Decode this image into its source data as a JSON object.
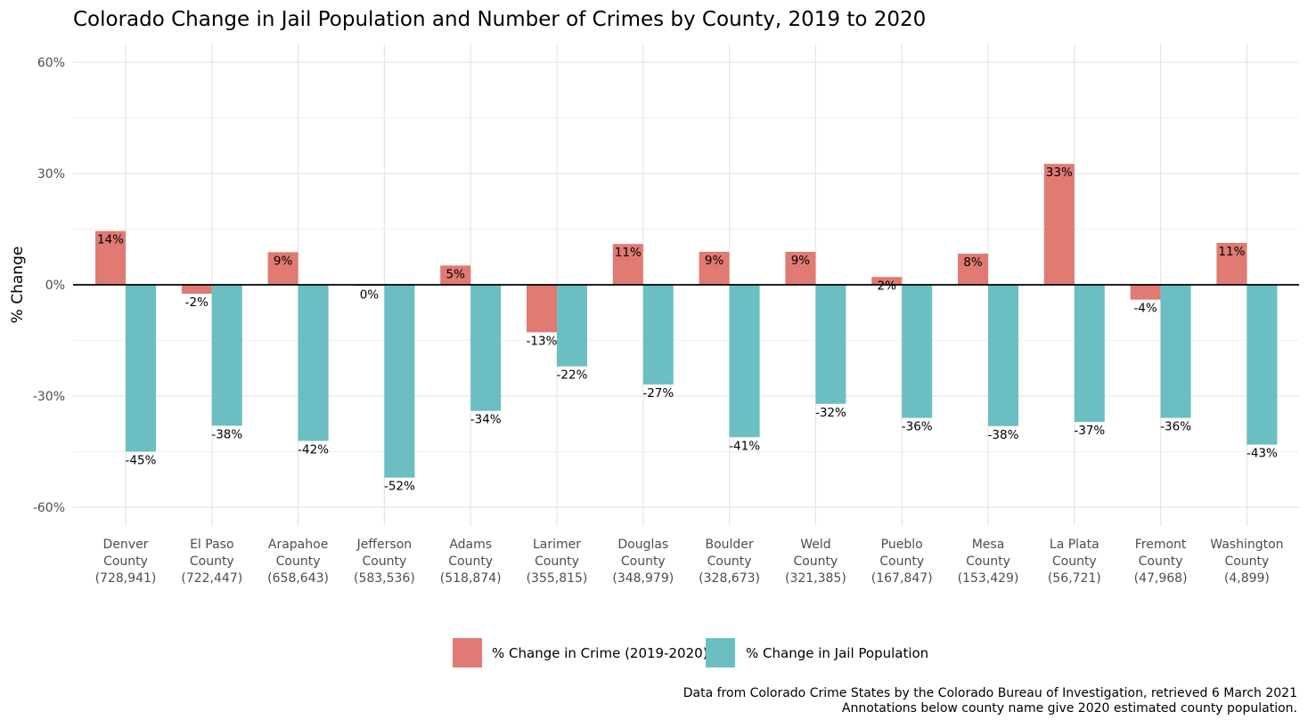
{
  "chart_data": {
    "type": "bar",
    "title": "Colorado Change in Jail Population and Number of Crimes by County, 2019 to 2020",
    "ylabel": "% Change",
    "xlabel": "",
    "ylim": [
      -65,
      65
    ],
    "yticks": [
      60,
      30,
      0,
      -30,
      -60
    ],
    "ytick_labels": [
      "60%",
      "30%",
      "0%",
      "-30%",
      "-60%"
    ],
    "grid": true,
    "legend_position": "bottom",
    "categories": [
      {
        "name": "Denver",
        "label": "County",
        "pop": "(728,941)"
      },
      {
        "name": "El Paso",
        "label": "County",
        "pop": "(722,447)"
      },
      {
        "name": "Arapahoe",
        "label": "County",
        "pop": "(658,643)"
      },
      {
        "name": "Jefferson",
        "label": "County",
        "pop": "(583,536)"
      },
      {
        "name": "Adams",
        "label": "County",
        "pop": "(518,874)"
      },
      {
        "name": "Larimer",
        "label": "County",
        "pop": "(355,815)"
      },
      {
        "name": "Douglas",
        "label": "County",
        "pop": "(348,979)"
      },
      {
        "name": "Boulder",
        "label": "County",
        "pop": "(328,673)"
      },
      {
        "name": "Weld",
        "label": "County",
        "pop": "(321,385)"
      },
      {
        "name": "Pueblo",
        "label": "County",
        "pop": "(167,847)"
      },
      {
        "name": "Mesa",
        "label": "County",
        "pop": "(153,429)"
      },
      {
        "name": "La Plata",
        "label": "County",
        "pop": "(56,721)"
      },
      {
        "name": "Fremont",
        "label": "County",
        "pop": "(47,968)"
      },
      {
        "name": "Washington",
        "label": "County",
        "pop": "(4,899)"
      }
    ],
    "series": [
      {
        "name": "% Change in Crime (2019-2020)",
        "color": "#e07a72",
        "values": [
          14.5,
          -2.4,
          8.8,
          -0.3,
          5.2,
          -12.8,
          11.0,
          8.9,
          8.9,
          2.1,
          8.4,
          32.6,
          -4.0,
          11.3
        ],
        "labels": [
          "14%",
          "-2%",
          "9%",
          "0%",
          "5%",
          "-13%",
          "11%",
          "9%",
          "9%",
          "2%",
          "8%",
          "33%",
          "-4%",
          "11%"
        ]
      },
      {
        "name": "% Change in Jail Population",
        "color": "#6bbfc2",
        "values": [
          -45.0,
          -38.0,
          -42.1,
          -52.0,
          -34.0,
          -22.0,
          -26.9,
          -41.1,
          -32.1,
          -35.9,
          -38.1,
          -37.0,
          -35.9,
          -43.1
        ],
        "labels": [
          "-45%",
          "-38%",
          "-42%",
          "-52%",
          "-34%",
          "-22%",
          "-27%",
          "-41%",
          "-32%",
          "-36%",
          "-38%",
          "-37%",
          "-36%",
          "-43%"
        ]
      }
    ],
    "caption_lines": [
      "Data from Colorado Crime States by the Colorado Bureau of Investigation, retrieved 6 March 2021",
      "Annotations below county name give 2020 estimated county population."
    ]
  }
}
